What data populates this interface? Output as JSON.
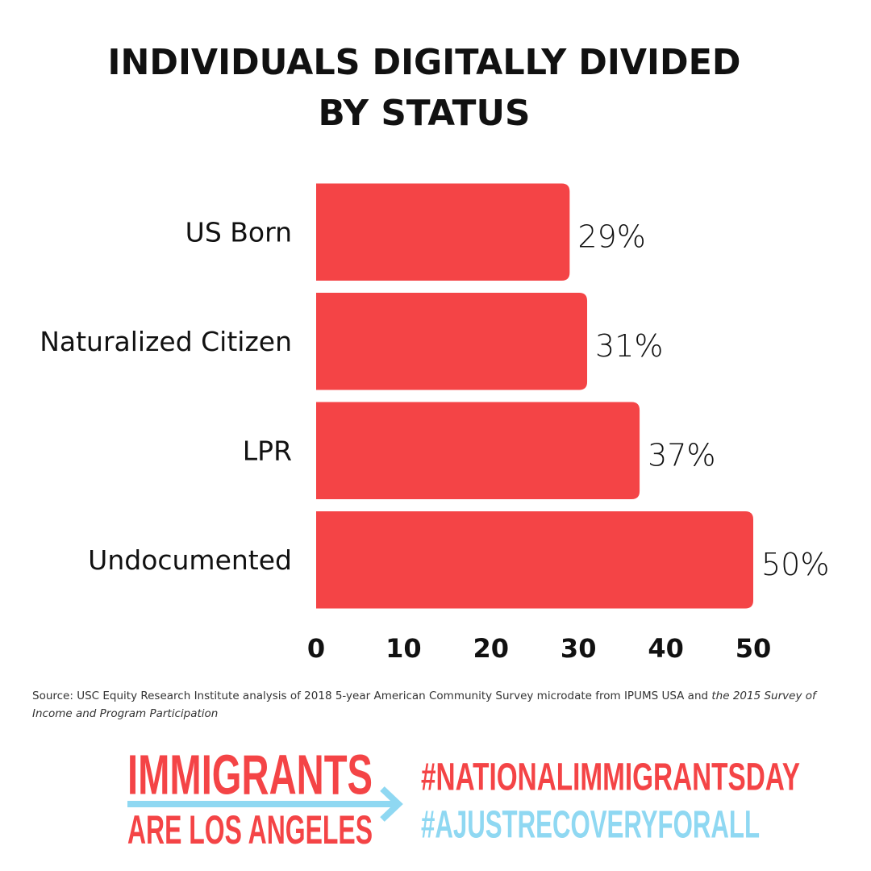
{
  "chart_data": {
    "type": "bar",
    "orientation": "horizontal",
    "title": [
      "INDIVIDUALS DIGITALLY DIVIDED",
      "BY STATUS"
    ],
    "categories": [
      "US Born",
      "Naturalized Citizen",
      "LPR",
      "Undocumented"
    ],
    "values": [
      29,
      31,
      37,
      50
    ],
    "value_labels": [
      "29%",
      "31%",
      "37%",
      "50%"
    ],
    "color": "#f44446",
    "xlim": [
      0,
      50
    ],
    "xticks": [
      0,
      10,
      20,
      30,
      40,
      50
    ],
    "grid": false
  },
  "source": {
    "text": "Source: USC Equity Research Institute analysis of 2018 5-year American Community Survey microdate from IPUMS USA and",
    "italic": "the 2015 Survey of Income and Program Participation"
  },
  "footer": {
    "logo_top": "IMMIGRANTS",
    "logo_bottom": "ARE LOS ANGELES",
    "hashtag_1": "#NATIONALIMMIGRANTSDAY",
    "hashtag_2": "#AJUSTRECOVERYFORALL"
  }
}
